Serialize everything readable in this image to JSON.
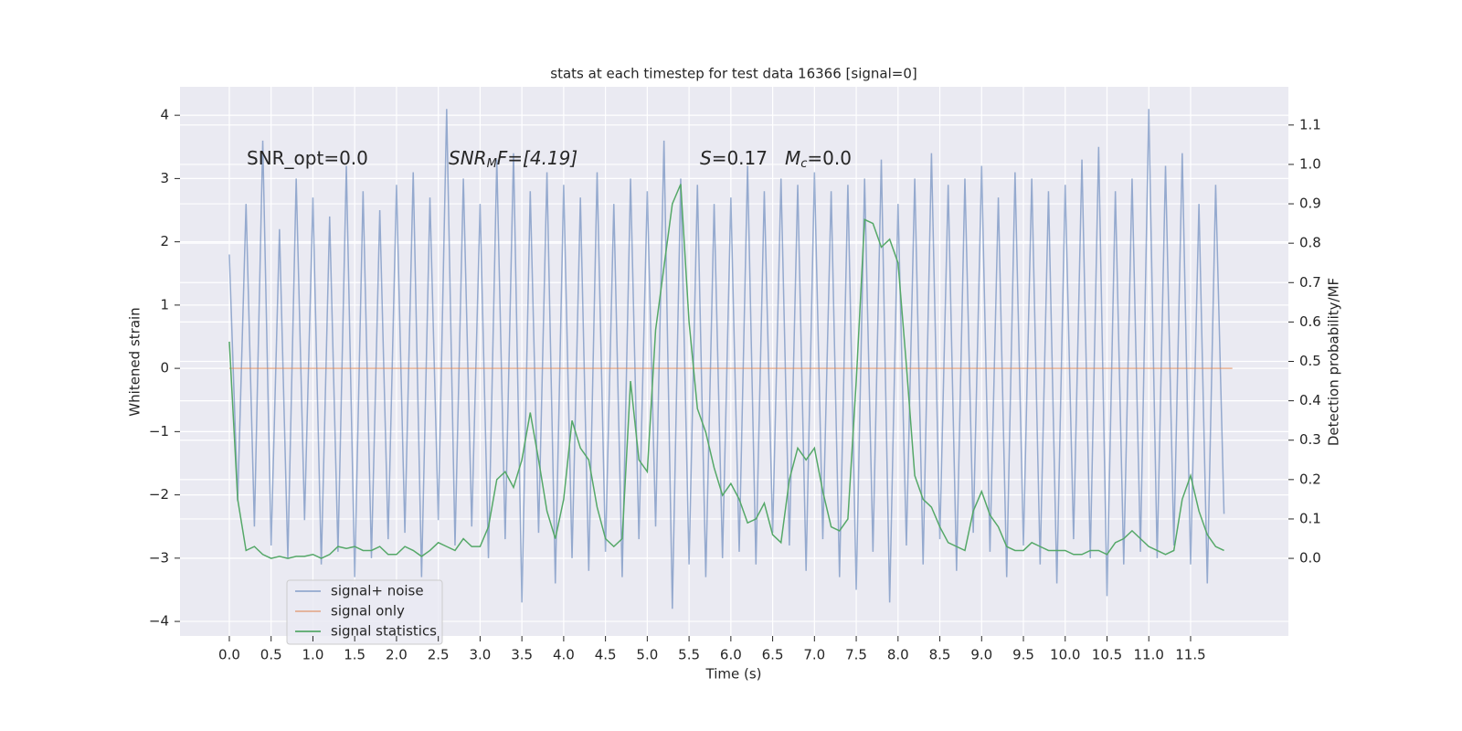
{
  "chart_data": {
    "type": "line",
    "title": "stats at each timestep for test data 16366 [signal=0]",
    "x_label": "Time (s)",
    "y_label": "Whitened strain",
    "y2_label": "Detection probability/MF",
    "annotations": [
      [
        "SNR_opt=0.0"
      ],
      [
        "SNR",
        "M",
        "F=[4.19]"
      ],
      [
        "S",
        "=0.17",
        "M",
        "c",
        "=0.0"
      ]
    ],
    "x": [
      0.0,
      0.1,
      0.2,
      0.3,
      0.4,
      0.5,
      0.6,
      0.7,
      0.8,
      0.9,
      1.0,
      1.1,
      1.2,
      1.3,
      1.4,
      1.5,
      1.6,
      1.7,
      1.8,
      1.9,
      2.0,
      2.1,
      2.2,
      2.3,
      2.4,
      2.5,
      2.6,
      2.7,
      2.8,
      2.9,
      3.0,
      3.1,
      3.2,
      3.3,
      3.4,
      3.5,
      3.6,
      3.7,
      3.8,
      3.9,
      4.0,
      4.1,
      4.2,
      4.3,
      4.4,
      4.5,
      4.6,
      4.7,
      4.8,
      4.9,
      5.0,
      5.1,
      5.2,
      5.3,
      5.4,
      5.5,
      5.6,
      5.7,
      5.8,
      5.9,
      6.0,
      6.1,
      6.2,
      6.3,
      6.4,
      6.5,
      6.6,
      6.7,
      6.8,
      6.9,
      7.0,
      7.1,
      7.2,
      7.3,
      7.4,
      7.5,
      7.6,
      7.7,
      7.8,
      7.9,
      8.0,
      8.1,
      8.2,
      8.3,
      8.4,
      8.5,
      8.6,
      8.7,
      8.8,
      8.9,
      9.0,
      9.1,
      9.2,
      9.3,
      9.4,
      9.5,
      9.6,
      9.7,
      9.8,
      9.9,
      10.0,
      10.1,
      10.2,
      10.3,
      10.4,
      10.5,
      10.6,
      10.7,
      10.8,
      10.9,
      11.0,
      11.1,
      11.2,
      11.3,
      11.4,
      11.5,
      11.6,
      11.7,
      11.8,
      11.9
    ],
    "series": [
      {
        "name": "signal+ noise",
        "color": "#4c72b0",
        "opacity": 0.55,
        "axis": "y",
        "values": [
          1.8,
          -2.1,
          2.6,
          -2.5,
          3.6,
          -2.8,
          2.2,
          -3.0,
          3.0,
          -2.4,
          2.7,
          -3.1,
          2.4,
          -2.9,
          3.2,
          -3.3,
          2.8,
          -3.0,
          2.5,
          -2.7,
          2.9,
          -2.6,
          3.1,
          -3.3,
          2.7,
          -2.4,
          4.1,
          -2.8,
          3.0,
          -2.5,
          2.6,
          -3.0,
          3.3,
          -2.7,
          3.4,
          -3.7,
          2.8,
          -2.6,
          3.1,
          -3.4,
          2.9,
          -3.0,
          2.7,
          -3.2,
          3.1,
          -2.9,
          2.6,
          -3.3,
          3.0,
          -2.7,
          2.8,
          -2.5,
          3.6,
          -3.8,
          3.0,
          -3.1,
          2.9,
          -3.3,
          2.6,
          -3.0,
          2.7,
          -2.9,
          3.2,
          -3.1,
          2.8,
          -2.6,
          3.0,
          -2.8,
          2.9,
          -3.2,
          3.1,
          -2.7,
          2.8,
          -3.3,
          2.9,
          -3.5,
          3.0,
          -2.9,
          3.3,
          -3.7,
          2.6,
          -2.8,
          3.0,
          -3.1,
          3.4,
          -2.7,
          2.9,
          -3.2,
          3.0,
          -2.6,
          3.2,
          -2.9,
          2.7,
          -3.3,
          3.1,
          -2.8,
          3.0,
          -3.1,
          2.8,
          -3.4,
          2.9,
          -2.7,
          3.3,
          -3.0,
          3.5,
          -3.6,
          2.8,
          -3.1,
          3.0,
          -2.9,
          4.1,
          -3.0,
          3.2,
          -2.8,
          3.4,
          -3.1,
          2.6,
          -3.4,
          2.9,
          -2.3
        ]
      },
      {
        "name": "signal only",
        "color": "#dd8452",
        "opacity": 0.6,
        "axis": "y",
        "x": [
          0,
          12
        ],
        "values": [
          0,
          0
        ]
      },
      {
        "name": "signal statistics",
        "color": "#55a868",
        "opacity": 1,
        "axis": "y2",
        "values": [
          0.55,
          0.15,
          0.02,
          0.03,
          0.01,
          0.0,
          0.005,
          0.0,
          0.005,
          0.005,
          0.01,
          0.0,
          0.01,
          0.03,
          0.025,
          0.03,
          0.02,
          0.02,
          0.03,
          0.01,
          0.01,
          0.03,
          0.02,
          0.005,
          0.02,
          0.04,
          0.03,
          0.02,
          0.05,
          0.03,
          0.03,
          0.08,
          0.2,
          0.22,
          0.18,
          0.25,
          0.37,
          0.25,
          0.12,
          0.05,
          0.15,
          0.35,
          0.28,
          0.25,
          0.13,
          0.05,
          0.03,
          0.05,
          0.45,
          0.25,
          0.22,
          0.58,
          0.74,
          0.9,
          0.95,
          0.6,
          0.38,
          0.32,
          0.23,
          0.16,
          0.19,
          0.15,
          0.09,
          0.1,
          0.14,
          0.06,
          0.04,
          0.2,
          0.28,
          0.25,
          0.28,
          0.17,
          0.08,
          0.07,
          0.1,
          0.45,
          0.86,
          0.85,
          0.79,
          0.81,
          0.75,
          0.49,
          0.21,
          0.15,
          0.13,
          0.08,
          0.04,
          0.03,
          0.02,
          0.12,
          0.17,
          0.11,
          0.08,
          0.03,
          0.02,
          0.02,
          0.04,
          0.03,
          0.02,
          0.02,
          0.02,
          0.01,
          0.01,
          0.02,
          0.02,
          0.01,
          0.04,
          0.05,
          0.07,
          0.05,
          0.03,
          0.02,
          0.01,
          0.02,
          0.15,
          0.21,
          0.12,
          0.06,
          0.03,
          0.02
        ]
      }
    ],
    "xlim": [
      -0.59,
      12.67
    ],
    "ylim": [
      -4.23,
      4.45
    ],
    "y2lim": [
      -0.197,
      1.197
    ],
    "xticks": [
      {
        "value": 0,
        "label": "0.0"
      },
      {
        "value": 0.5,
        "label": "0.5"
      },
      {
        "value": 1,
        "label": "1.0"
      },
      {
        "value": 1.5,
        "label": "1.5"
      },
      {
        "value": 2,
        "label": "2.0"
      },
      {
        "value": 2.5,
        "label": "2.5"
      },
      {
        "value": 3,
        "label": "3.0"
      },
      {
        "value": 3.5,
        "label": "3.5"
      },
      {
        "value": 4,
        "label": "4.0"
      },
      {
        "value": 4.5,
        "label": "4.5"
      },
      {
        "value": 5,
        "label": "5.0"
      },
      {
        "value": 5.5,
        "label": "5.5"
      },
      {
        "value": 6,
        "label": "6.0"
      },
      {
        "value": 6.5,
        "label": "6.5"
      },
      {
        "value": 7,
        "label": "7.0"
      },
      {
        "value": 7.5,
        "label": "7.5"
      },
      {
        "value": 8,
        "label": "8.0"
      },
      {
        "value": 8.5,
        "label": "8.5"
      },
      {
        "value": 9,
        "label": "9.0"
      },
      {
        "value": 9.5,
        "label": "9.5"
      },
      {
        "value": 10,
        "label": "10.0"
      },
      {
        "value": 10.5,
        "label": "10.5"
      },
      {
        "value": 11,
        "label": "11.0"
      },
      {
        "value": 11.5,
        "label": "11.5"
      }
    ],
    "yticks": [
      {
        "value": -4,
        "label": "−4"
      },
      {
        "value": -3,
        "label": "−3"
      },
      {
        "value": -2,
        "label": "−2"
      },
      {
        "value": -1,
        "label": "−1"
      },
      0,
      1,
      2,
      3,
      4
    ],
    "y2ticks": [
      {
        "value": 0,
        "label": "0.0"
      },
      {
        "value": 0.1,
        "label": "0.1"
      },
      {
        "value": 0.2,
        "label": "0.2"
      },
      {
        "value": 0.3,
        "label": "0.3"
      },
      {
        "value": 0.4,
        "label": "0.4"
      },
      {
        "value": 0.5,
        "label": "0.5"
      },
      {
        "value": 0.6,
        "label": "0.6"
      },
      {
        "value": 0.7,
        "label": "0.7"
      },
      {
        "value": 0.8,
        "label": "0.8"
      },
      {
        "value": 0.9,
        "label": "0.9"
      },
      {
        "value": 1,
        "label": "1.0"
      },
      {
        "value": 1.1,
        "label": "1.1"
      }
    ],
    "grid": true,
    "legend": "lower left"
  }
}
